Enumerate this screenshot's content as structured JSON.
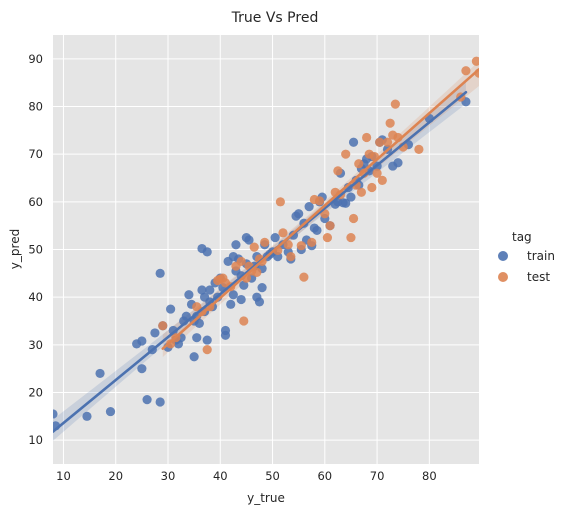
{
  "chart_data": {
    "type": "scatter",
    "title": "True Vs Pred",
    "xlabel": "y_true",
    "ylabel": "y_pred",
    "xlim": [
      8,
      89.5
    ],
    "ylim": [
      5,
      95
    ],
    "xticks": [
      10,
      20,
      30,
      40,
      50,
      60,
      70,
      80
    ],
    "yticks": [
      10,
      20,
      30,
      40,
      50,
      60,
      70,
      80,
      90
    ],
    "grid": true,
    "legend": {
      "title": "tag",
      "placement": "right"
    },
    "series": [
      {
        "name": "train",
        "color": "#4c72b0",
        "fit": {
          "x": [
            8,
            87
          ],
          "y": [
            11.8,
            83.0
          ]
        },
        "points": [
          [
            8,
            15.5
          ],
          [
            8.5,
            13
          ],
          [
            14.5,
            15
          ],
          [
            17,
            24
          ],
          [
            19,
            16
          ],
          [
            24,
            30.2
          ],
          [
            25,
            30.8
          ],
          [
            25,
            25
          ],
          [
            26,
            18.5
          ],
          [
            27,
            29
          ],
          [
            27.5,
            32.5
          ],
          [
            28.5,
            18
          ],
          [
            28.5,
            45
          ],
          [
            29,
            34
          ],
          [
            30,
            29.5
          ],
          [
            30.5,
            37.5
          ],
          [
            31,
            33
          ],
          [
            31.5,
            31
          ],
          [
            32,
            30.2
          ],
          [
            32.5,
            31.5
          ],
          [
            33,
            35
          ],
          [
            33.5,
            36
          ],
          [
            34,
            40.5
          ],
          [
            34.5,
            38.5
          ],
          [
            35,
            35
          ],
          [
            35,
            27.5
          ],
          [
            35.5,
            36
          ],
          [
            35.5,
            31.5
          ],
          [
            36,
            34.5
          ],
          [
            36.5,
            50.2
          ],
          [
            36.5,
            41.5
          ],
          [
            37,
            37
          ],
          [
            37,
            40
          ],
          [
            37.5,
            49.5
          ],
          [
            37.5,
            31
          ],
          [
            38,
            39
          ],
          [
            38,
            41.5
          ],
          [
            38.5,
            38
          ],
          [
            39,
            43
          ],
          [
            39.5,
            40
          ],
          [
            40,
            44
          ],
          [
            40.5,
            42
          ],
          [
            41,
            33
          ],
          [
            41,
            32
          ],
          [
            41.5,
            47.5
          ],
          [
            42,
            38.5
          ],
          [
            42.5,
            40.5
          ],
          [
            42.5,
            48.5
          ],
          [
            43,
            45.5
          ],
          [
            43,
            51
          ],
          [
            43.5,
            48
          ],
          [
            44,
            44.5
          ],
          [
            44,
            39.5
          ],
          [
            44.5,
            42.5
          ],
          [
            45,
            52.5
          ],
          [
            45,
            47
          ],
          [
            45.5,
            52
          ],
          [
            46,
            44
          ],
          [
            46.5,
            46.5
          ],
          [
            47,
            48.5
          ],
          [
            47,
            40
          ],
          [
            47.5,
            39
          ],
          [
            48,
            42
          ],
          [
            48,
            46
          ],
          [
            48.5,
            51
          ],
          [
            49,
            48.5
          ],
          [
            49.5,
            49
          ],
          [
            50,
            49.5
          ],
          [
            50.5,
            52.5
          ],
          [
            51,
            48.5
          ],
          [
            52,
            51
          ],
          [
            53,
            49.5
          ],
          [
            53.5,
            48
          ],
          [
            54,
            53
          ],
          [
            54.5,
            57
          ],
          [
            55,
            57.5
          ],
          [
            55.5,
            50
          ],
          [
            56,
            55.5
          ],
          [
            56.5,
            52
          ],
          [
            57,
            59
          ],
          [
            57.5,
            50.8
          ],
          [
            58,
            54.5
          ],
          [
            58.5,
            54
          ],
          [
            59,
            60
          ],
          [
            59.5,
            61
          ],
          [
            60,
            56.5
          ],
          [
            61,
            55
          ],
          [
            62,
            59.5
          ],
          [
            62.5,
            60
          ],
          [
            63,
            66
          ],
          [
            63.5,
            59.8
          ],
          [
            64,
            59.7
          ],
          [
            64.5,
            63
          ],
          [
            65,
            61
          ],
          [
            65.5,
            72.5
          ],
          [
            66,
            64.5
          ],
          [
            66.5,
            63.5
          ],
          [
            67,
            67
          ],
          [
            67.5,
            68
          ],
          [
            68,
            69
          ],
          [
            68.5,
            66.5
          ],
          [
            69,
            69.5
          ],
          [
            70,
            67.5
          ],
          [
            70.5,
            72.5
          ],
          [
            71,
            73
          ],
          [
            72,
            71
          ],
          [
            73,
            67.5
          ],
          [
            74,
            68.2
          ],
          [
            76,
            72
          ],
          [
            80,
            77.5
          ],
          [
            87,
            81
          ]
        ]
      },
      {
        "name": "test",
        "color": "#dd8452",
        "fit": {
          "x": [
            29,
            89.5
          ],
          "y": [
            29.2,
            87.8
          ]
        },
        "points": [
          [
            29,
            34
          ],
          [
            30.5,
            30.2
          ],
          [
            31.5,
            31.5
          ],
          [
            35.5,
            38
          ],
          [
            36.5,
            37
          ],
          [
            37.5,
            29
          ],
          [
            38,
            38
          ],
          [
            39.5,
            43.5
          ],
          [
            40,
            43.8
          ],
          [
            40.5,
            44
          ],
          [
            41,
            43
          ],
          [
            42,
            42.2
          ],
          [
            43,
            46.5
          ],
          [
            44,
            47.5
          ],
          [
            44.5,
            35
          ],
          [
            45,
            44
          ],
          [
            45.5,
            46.5
          ],
          [
            46,
            45.5
          ],
          [
            46.5,
            50.5
          ],
          [
            47,
            45.2
          ],
          [
            47.5,
            48
          ],
          [
            48,
            47.5
          ],
          [
            48.5,
            51.5
          ],
          [
            51,
            49.8
          ],
          [
            51.5,
            60
          ],
          [
            52,
            53.5
          ],
          [
            53,
            51
          ],
          [
            53.5,
            48.5
          ],
          [
            55.5,
            50.8
          ],
          [
            56,
            44.2
          ],
          [
            57.5,
            51.5
          ],
          [
            58,
            60.5
          ],
          [
            59,
            60.2
          ],
          [
            60,
            57.5
          ],
          [
            60.5,
            52.5
          ],
          [
            61,
            55
          ],
          [
            62,
            62
          ],
          [
            62.5,
            66.5
          ],
          [
            63,
            61.5
          ],
          [
            64,
            70
          ],
          [
            65,
            52.5
          ],
          [
            65.5,
            56.5
          ],
          [
            66,
            63.5
          ],
          [
            66.5,
            68
          ],
          [
            67,
            62
          ],
          [
            67.5,
            66
          ],
          [
            68,
            73.5
          ],
          [
            68.5,
            70
          ],
          [
            69,
            63
          ],
          [
            69.5,
            69.5
          ],
          [
            70,
            66
          ],
          [
            70.5,
            72.5
          ],
          [
            71,
            64.5
          ],
          [
            72,
            72.5
          ],
          [
            72.5,
            76.5
          ],
          [
            73,
            74
          ],
          [
            73.5,
            80.5
          ],
          [
            74,
            73.5
          ],
          [
            75,
            71.5
          ],
          [
            78,
            71
          ],
          [
            86,
            82
          ],
          [
            87,
            87.5
          ],
          [
            89,
            89.5
          ],
          [
            89.5,
            87
          ]
        ]
      }
    ]
  }
}
